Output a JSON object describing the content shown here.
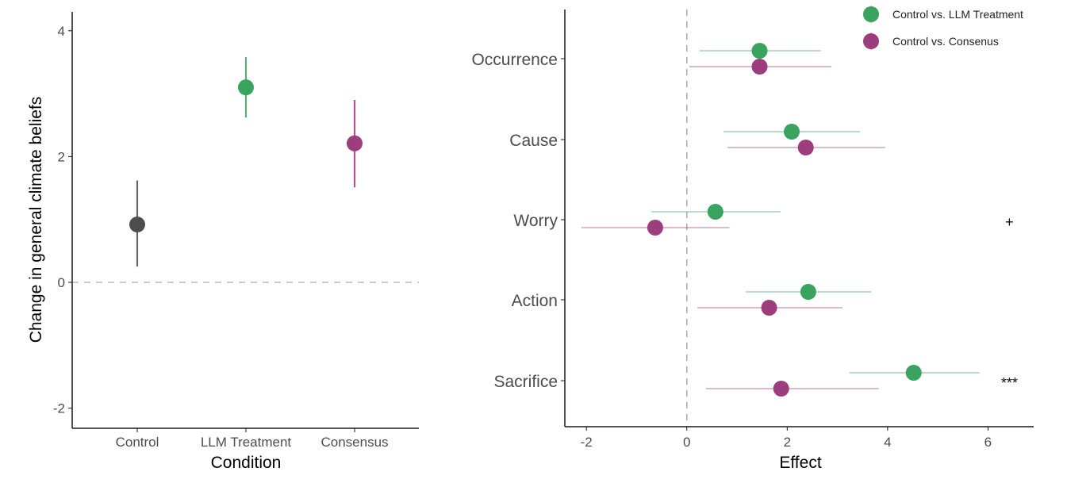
{
  "colors": {
    "control": "#4d4d4d",
    "llm": "#3aa35f",
    "consensus": "#9c3d7d",
    "axis": "#1a1a1a",
    "ref": "#bbbbbb"
  },
  "chart_data": [
    {
      "type": "pointrange",
      "title": "",
      "xlabel": "Condition",
      "ylabel": "Change in general climate beliefs",
      "ylim": [
        -2.32,
        4.3
      ],
      "yticks": [
        "-2",
        "0",
        "2",
        "4"
      ],
      "ytick_values": [
        -2,
        0,
        2,
        4
      ],
      "reference_line": 0,
      "categories": [
        "Control",
        "LLM Treatment",
        "Consensus"
      ],
      "values": [
        0.92,
        3.1,
        2.21
      ],
      "ci_low": [
        0.25,
        2.62,
        1.51
      ],
      "ci_high": [
        1.62,
        3.58,
        2.9
      ],
      "color_keys": [
        "control",
        "llm",
        "consensus"
      ]
    },
    {
      "type": "forest",
      "title": "",
      "xlabel": "Effect",
      "ylabel": "",
      "xlim": [
        -2.43,
        6.91
      ],
      "xticks": [
        "-2",
        "0",
        "2",
        "4",
        "6"
      ],
      "xtick_values": [
        -2,
        0,
        2,
        4,
        6
      ],
      "reference_line": 0,
      "categories": [
        "Occurrence",
        "Cause",
        "Worry",
        "Action",
        "Sacrifice"
      ],
      "legend_placement": "top-right",
      "series": [
        {
          "name": "Control vs. LLM Treatment",
          "color_key": "llm",
          "values": [
            1.45,
            2.09,
            0.57,
            2.42,
            4.52
          ],
          "ci_low": [
            0.25,
            0.73,
            -0.71,
            1.17,
            3.24
          ],
          "ci_high": [
            2.67,
            3.45,
            1.87,
            3.67,
            5.83
          ]
        },
        {
          "name": "Control vs. Consenus",
          "color_key": "consensus",
          "values": [
            1.45,
            2.37,
            -0.63,
            1.64,
            1.88
          ],
          "ci_low": [
            0.05,
            0.81,
            -2.1,
            0.21,
            0.38
          ],
          "ci_high": [
            2.88,
            3.95,
            0.85,
            3.1,
            3.82
          ]
        }
      ],
      "annotations": [
        "",
        "",
        "+",
        "",
        "***"
      ],
      "annotation_x": 6.3
    }
  ]
}
